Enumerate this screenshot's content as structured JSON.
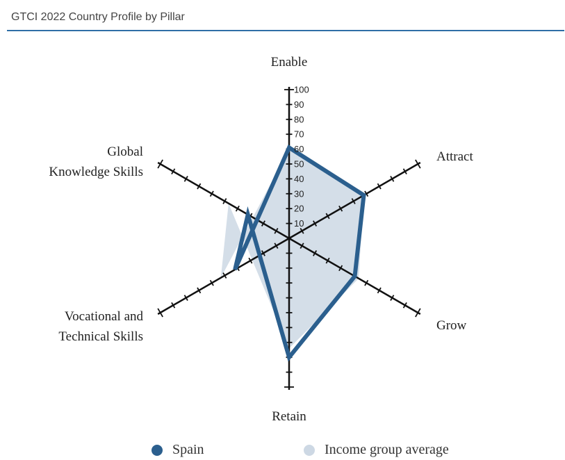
{
  "header": {
    "title": "GTCI 2022 Country Profile by Pillar"
  },
  "chart_data": {
    "type": "radar",
    "title": "GTCI 2022 Country Profile by Pillar",
    "axes": [
      "Enable",
      "Attract",
      "Grow",
      "Retain",
      "Global Knowledge Skills",
      "Vocational and Technical Skills"
    ],
    "axis_label_lines": {
      "Enable": [
        "Enable"
      ],
      "Attract": [
        "Attract"
      ],
      "Grow": [
        "Grow"
      ],
      "Retain": [
        "Retain"
      ],
      "Global Knowledge Skills": [
        "Global",
        "Knowledge Skills"
      ],
      "Vocational and Technical Skills": [
        "Vocational and",
        "Technical Skills"
      ]
    },
    "range": [
      0,
      100
    ],
    "ticks": [
      "10",
      "20",
      "30",
      "40",
      "50",
      "60",
      "70",
      "80",
      "90",
      "100"
    ],
    "series": [
      {
        "name": "Spain",
        "values": [
          61,
          58,
          51,
          80,
          32,
          42
        ],
        "color": "#2b5f8e"
      },
      {
        "name": "Income group average",
        "values": [
          60,
          58,
          54,
          74,
          47,
          53
        ],
        "color": "#cdd8e4"
      }
    ]
  },
  "legend": [
    {
      "label": "Spain",
      "color": "#2b5f8e"
    },
    {
      "label": "Income group average",
      "color": "#cdd8e4"
    }
  ]
}
